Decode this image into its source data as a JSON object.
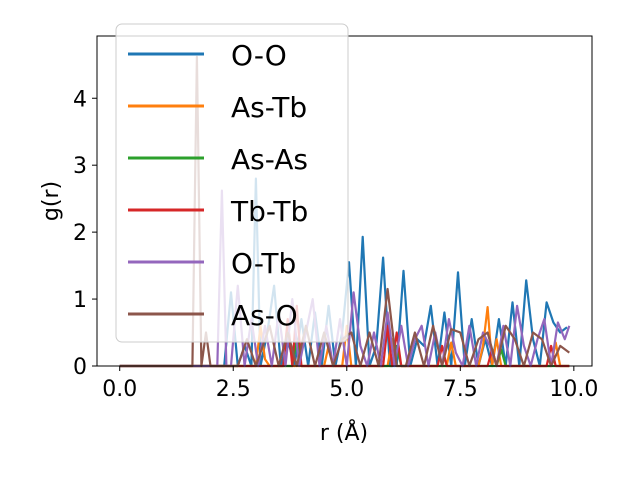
{
  "chart_data": {
    "type": "line",
    "xlabel": "r (Å)",
    "ylabel": "g(r)",
    "xlim": [
      -0.5,
      10.4
    ],
    "ylim": [
      0,
      4.93
    ],
    "xticks": [
      0.0,
      2.5,
      5.0,
      7.5,
      10.0
    ],
    "xtick_labels": [
      "0.0",
      "2.5",
      "5.0",
      "7.5",
      "10.0"
    ],
    "yticks": [
      0,
      1,
      2,
      3,
      4
    ],
    "ytick_labels": [
      "0",
      "1",
      "2",
      "3",
      "4"
    ],
    "legend_position": "upper-left",
    "series": [
      {
        "name": "O-O",
        "color": "#1f77b4",
        "x": [
          0.0,
          2.3,
          2.45,
          2.6,
          2.75,
          2.9,
          3.0,
          3.1,
          3.25,
          3.4,
          3.55,
          3.7,
          3.85,
          4.0,
          4.15,
          4.3,
          4.45,
          4.6,
          4.75,
          4.9,
          5.05,
          5.2,
          5.35,
          5.5,
          5.65,
          5.8,
          5.95,
          6.1,
          6.25,
          6.4,
          6.55,
          6.7,
          6.85,
          7.0,
          7.15,
          7.3,
          7.45,
          7.6,
          7.75,
          7.9,
          8.05,
          8.2,
          8.35,
          8.5,
          8.65,
          8.8,
          8.95,
          9.1,
          9.25,
          9.4,
          9.55,
          9.7,
          9.85
        ],
        "y": [
          0.0,
          0.0,
          1.1,
          0.0,
          0.3,
          0.0,
          2.8,
          0.0,
          0.5,
          1.2,
          0.0,
          0.4,
          0.0,
          0.7,
          0.0,
          0.8,
          0.0,
          0.9,
          0.0,
          0.5,
          1.55,
          0.0,
          1.93,
          0.0,
          0.3,
          1.62,
          0.0,
          0.0,
          1.42,
          0.0,
          0.4,
          0.3,
          0.9,
          0.0,
          0.8,
          0.0,
          1.4,
          0.0,
          0.7,
          0.0,
          0.4,
          0.0,
          0.7,
          0.0,
          0.95,
          0.0,
          1.28,
          0.4,
          0.0,
          0.95,
          0.65,
          0.5,
          0.58
        ]
      },
      {
        "name": "As-Tb",
        "color": "#ff7f0e",
        "x": [
          0.0,
          3.0,
          3.1,
          3.2,
          3.3,
          4.5,
          4.6,
          4.7,
          4.9,
          5.0,
          5.1,
          5.9,
          6.0,
          6.1,
          7.2,
          7.3,
          7.4,
          7.9,
          8.0,
          8.1,
          8.2,
          8.3,
          8.4,
          8.5,
          9.5,
          9.6,
          9.7,
          9.9
        ],
        "y": [
          0.0,
          0.0,
          0.6,
          0.1,
          0.0,
          0.0,
          0.3,
          0.0,
          0.0,
          0.6,
          0.0,
          0.0,
          0.4,
          0.0,
          0.0,
          0.35,
          0.0,
          0.0,
          0.3,
          0.88,
          0.0,
          0.4,
          0.0,
          0.0,
          0.0,
          0.35,
          0.0,
          0.0
        ]
      },
      {
        "name": "As-As",
        "color": "#2ca02c",
        "x": [
          0.0,
          3.8,
          3.9,
          4.0,
          6.0,
          6.1,
          6.2,
          8.3,
          8.4,
          8.5,
          9.9
        ],
        "y": [
          0.0,
          0.0,
          0.4,
          0.0,
          0.0,
          0.3,
          0.0,
          0.0,
          0.25,
          0.0,
          0.0
        ]
      },
      {
        "name": "Tb-Tb",
        "color": "#d62728",
        "x": [
          0.0,
          3.6,
          3.7,
          3.8,
          3.9,
          4.0,
          4.1,
          5.8,
          5.9,
          6.0,
          6.1,
          6.2,
          7.0,
          7.1,
          7.2,
          8.1,
          8.2,
          8.3,
          9.4,
          9.5,
          9.6,
          9.9
        ],
        "y": [
          0.0,
          0.0,
          0.7,
          0.0,
          0.9,
          0.0,
          0.0,
          0.0,
          0.6,
          0.0,
          0.5,
          0.0,
          0.0,
          0.3,
          0.0,
          0.0,
          0.25,
          0.0,
          0.0,
          0.3,
          0.0,
          0.0
        ]
      },
      {
        "name": "O-Tb",
        "color": "#9467bd",
        "x": [
          0.0,
          2.15,
          2.25,
          2.35,
          2.45,
          2.6,
          2.75,
          2.9,
          3.05,
          3.2,
          3.35,
          3.5,
          3.65,
          3.8,
          3.95,
          4.1,
          4.25,
          4.4,
          4.55,
          4.7,
          4.85,
          5.0,
          5.15,
          5.3,
          5.45,
          5.6,
          5.75,
          5.9,
          6.05,
          6.2,
          6.35,
          6.5,
          6.65,
          6.8,
          6.95,
          7.1,
          7.25,
          7.4,
          7.55,
          7.7,
          7.85,
          8.0,
          8.15,
          8.3,
          8.45,
          8.6,
          8.75,
          8.9,
          9.05,
          9.2,
          9.35,
          9.5,
          9.65,
          9.8,
          9.9
        ],
        "y": [
          0.0,
          0.0,
          2.62,
          0.0,
          0.0,
          1.2,
          0.0,
          0.7,
          0.0,
          0.6,
          0.0,
          0.8,
          0.0,
          1.0,
          0.0,
          0.5,
          1.0,
          0.0,
          0.6,
          0.0,
          0.7,
          0.0,
          1.1,
          0.3,
          0.0,
          0.5,
          0.0,
          0.8,
          0.0,
          0.6,
          0.0,
          0.4,
          0.6,
          0.0,
          0.5,
          0.0,
          0.7,
          0.2,
          0.0,
          0.6,
          0.0,
          0.5,
          0.3,
          0.0,
          0.6,
          0.0,
          0.9,
          0.3,
          0.0,
          0.4,
          0.7,
          0.0,
          0.65,
          0.4,
          0.6
        ]
      },
      {
        "name": "As-O",
        "color": "#8c564b",
        "x": [
          0.0,
          1.6,
          1.7,
          1.8,
          1.9,
          2.0,
          2.6,
          2.8,
          3.0,
          3.3,
          3.5,
          3.7,
          3.9,
          4.1,
          4.3,
          4.5,
          4.7,
          4.9,
          5.1,
          5.3,
          5.5,
          5.7,
          5.9,
          6.1,
          6.3,
          6.5,
          6.7,
          6.9,
          7.1,
          7.3,
          7.5,
          7.7,
          7.9,
          8.1,
          8.3,
          8.5,
          8.7,
          8.9,
          9.1,
          9.3,
          9.5,
          9.7,
          9.9
        ],
        "y": [
          0.0,
          0.0,
          4.62,
          0.0,
          0.5,
          0.0,
          0.0,
          0.4,
          0.0,
          0.6,
          0.0,
          0.5,
          0.0,
          0.6,
          0.0,
          0.5,
          0.0,
          0.4,
          0.5,
          0.0,
          0.5,
          0.0,
          1.15,
          0.0,
          0.0,
          0.5,
          0.0,
          0.6,
          0.0,
          0.55,
          0.5,
          0.0,
          0.4,
          0.5,
          0.0,
          0.6,
          0.4,
          0.0,
          0.5,
          0.4,
          0.0,
          0.3,
          0.2
        ]
      }
    ]
  }
}
